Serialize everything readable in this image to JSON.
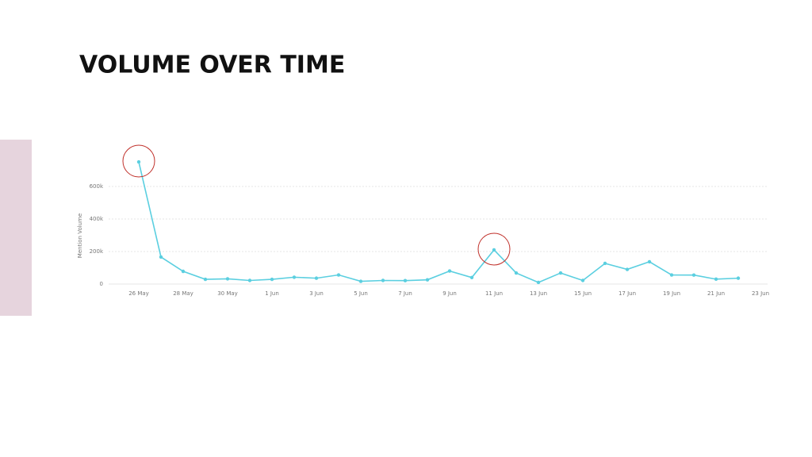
{
  "chart_data": {
    "type": "line",
    "title": "VOLUME OVER TIME",
    "y_label": "Mention Volume",
    "categories": [
      "26 May",
      null,
      "28 May",
      null,
      "30 May",
      null,
      "1 Jun",
      null,
      "3 Jun",
      null,
      "5 Jun",
      null,
      "7 Jun",
      null,
      "9 Jun",
      null,
      "11 Jun",
      null,
      "13 Jun",
      null,
      "15 Jun",
      null,
      "17 Jun",
      null,
      "19 Jun",
      null,
      "21 Jun",
      null,
      "23 Jun"
    ],
    "values": [
      751000,
      166000,
      78000,
      29000,
      32000,
      22000,
      29000,
      42000,
      36000,
      56000,
      17000,
      22000,
      21000,
      26000,
      80000,
      40000,
      210000,
      68000,
      10000,
      68000,
      22000,
      127000,
      90000,
      137000,
      56000,
      55000,
      30000,
      36000,
      null
    ],
    "color": "#5bcfe0",
    "ylim": [
      0,
      800000
    ],
    "yticks": [
      0,
      {
        "value": 200000,
        "label": "200k"
      },
      {
        "value": 400000,
        "label": "400k"
      },
      {
        "value": 600000,
        "label": "600k"
      }
    ],
    "grid": true
  }
}
